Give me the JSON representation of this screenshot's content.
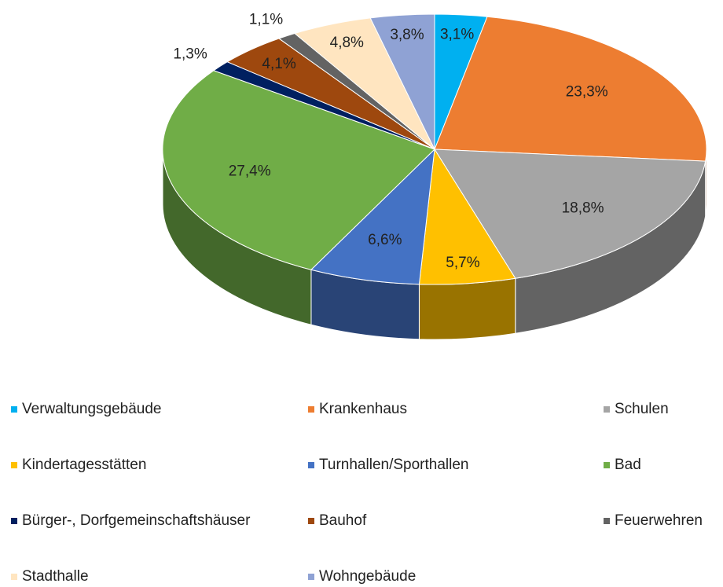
{
  "chart_data": {
    "type": "pie3d",
    "categories": [
      "Verwaltungsgebäude",
      "Krankenhaus",
      "Schulen",
      "Kindertagesstätten",
      "Turnhallen/Sporthallen",
      "Bad",
      "Bürger-, Dorfgemeinschaftshäuser",
      "Bauhof",
      "Feuerwehren",
      "Stadthalle",
      "Wohngebäude"
    ],
    "values": [
      3.1,
      23.3,
      18.8,
      5.7,
      6.6,
      27.4,
      1.3,
      4.1,
      1.1,
      4.8,
      3.8
    ],
    "value_labels": [
      "3,1%",
      "23,3%",
      "18,8%",
      "5,7%",
      "6,6%",
      "27,4%",
      "1,3%",
      "4,1%",
      "1,1%",
      "4,8%",
      "3,8%"
    ],
    "colors": [
      "#00b0f0",
      "#ed7d31",
      "#a5a5a5",
      "#ffc000",
      "#4472c4",
      "#70ad47",
      "#002060",
      "#9e480e",
      "#636363",
      "#ffe5c0",
      "#8fa2d4"
    ],
    "legend": "bottom"
  }
}
